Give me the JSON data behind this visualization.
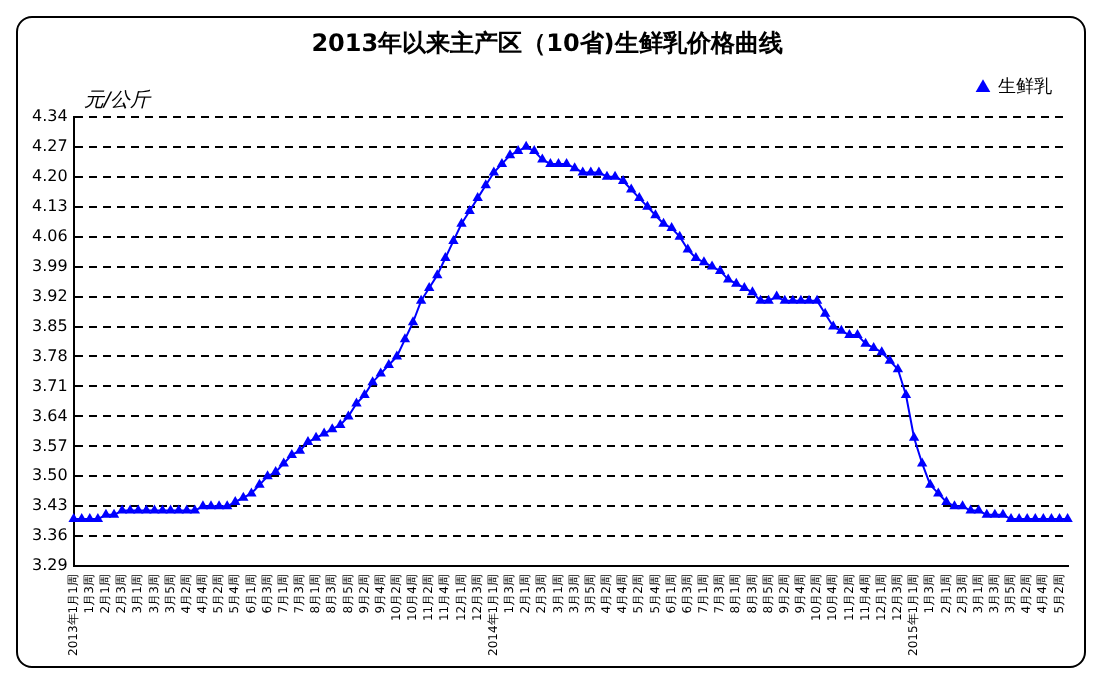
{
  "chart_data": {
    "type": "line",
    "title": "2013年以来主产区（10省)生鲜乳价格曲线",
    "ylabel": "元/公斤",
    "categories": [
      "2013年1月1周",
      null,
      "1月3周",
      null,
      "2月1周",
      null,
      "2月3周",
      null,
      "3月1周",
      null,
      "3月3周",
      null,
      "3月5周",
      null,
      "4月2周",
      null,
      "4月4周",
      null,
      "5月2周",
      null,
      "5月4周",
      null,
      "6月1周",
      null,
      "6月3周",
      null,
      "7月1周",
      null,
      "7月3周",
      null,
      "8月1周",
      null,
      "8月3周",
      null,
      "8月5周",
      null,
      "9月2周",
      null,
      "9月4周",
      null,
      "10月2周",
      null,
      "10月4周",
      null,
      "11月2周",
      null,
      "11月4周",
      null,
      "12月1周",
      null,
      "12月3周",
      null,
      "2014年1月1周",
      null,
      "1月3周",
      null,
      "2月1周",
      null,
      "2月3周",
      null,
      "3月1周",
      null,
      "3月3周",
      null,
      "3月5周",
      null,
      "4月2周",
      null,
      "4月4周",
      null,
      "5月2周",
      null,
      "5月4周",
      null,
      "6月1周",
      null,
      "6月3周",
      null,
      "7月1周",
      null,
      "7月3周",
      null,
      "8月1周",
      null,
      "8月3周",
      null,
      "8月5周",
      null,
      "9月2周",
      null,
      "9月4周",
      null,
      "10月2周",
      null,
      "10月4周",
      null,
      "11月2周",
      null,
      "11月4周",
      null,
      "12月1周",
      null,
      "12月3周",
      null,
      "2015年1月1周",
      null,
      "1月3周",
      null,
      "2月1周",
      null,
      "2月3周",
      null,
      "3月1周",
      null,
      "3月3周",
      null,
      "3月5周",
      null,
      "4月2周",
      null,
      "4月4周",
      null,
      "5月2周",
      null
    ],
    "series": [
      {
        "name": "生鲜乳",
        "color": "#0000ff",
        "values": [
          3.4,
          3.4,
          3.4,
          3.4,
          3.41,
          3.41,
          3.42,
          3.42,
          3.42,
          3.42,
          3.42,
          3.42,
          3.42,
          3.42,
          3.42,
          3.42,
          3.43,
          3.43,
          3.43,
          3.43,
          3.44,
          3.45,
          3.46,
          3.48,
          3.5,
          3.51,
          3.53,
          3.55,
          3.56,
          3.58,
          3.59,
          3.6,
          3.61,
          3.62,
          3.64,
          3.67,
          3.69,
          3.72,
          3.74,
          3.76,
          3.78,
          3.82,
          3.86,
          3.91,
          3.94,
          3.97,
          4.01,
          4.05,
          4.09,
          4.12,
          4.15,
          4.18,
          4.21,
          4.23,
          4.25,
          4.26,
          4.27,
          4.26,
          4.24,
          4.23,
          4.23,
          4.23,
          4.22,
          4.21,
          4.21,
          4.21,
          4.2,
          4.2,
          4.19,
          4.17,
          4.15,
          4.13,
          4.11,
          4.09,
          4.08,
          4.06,
          4.03,
          4.01,
          4.0,
          3.99,
          3.98,
          3.96,
          3.95,
          3.94,
          3.93,
          3.91,
          3.91,
          3.92,
          3.91,
          3.91,
          3.91,
          3.91,
          3.91,
          3.88,
          3.85,
          3.84,
          3.83,
          3.83,
          3.81,
          3.8,
          3.79,
          3.77,
          3.75,
          3.69,
          3.59,
          3.53,
          3.48,
          3.46,
          3.44,
          3.43,
          3.43,
          3.42,
          3.42,
          3.41,
          3.41,
          3.41,
          3.4,
          3.4,
          3.4,
          3.4,
          3.4,
          3.4,
          3.4,
          3.4
        ]
      }
    ],
    "ylim": [
      3.29,
      4.34
    ],
    "yticks": [
      3.29,
      3.36,
      3.43,
      {
        "value": 3.5,
        "label": "3.50"
      },
      3.57,
      3.64,
      3.71,
      3.78,
      3.85,
      3.92,
      3.99,
      4.06,
      4.13,
      {
        "value": 4.2,
        "label": "4.20"
      },
      4.27,
      4.34
    ],
    "grid": "y",
    "legend": "top right",
    "marker": "triangle",
    "line_style": "solid"
  }
}
